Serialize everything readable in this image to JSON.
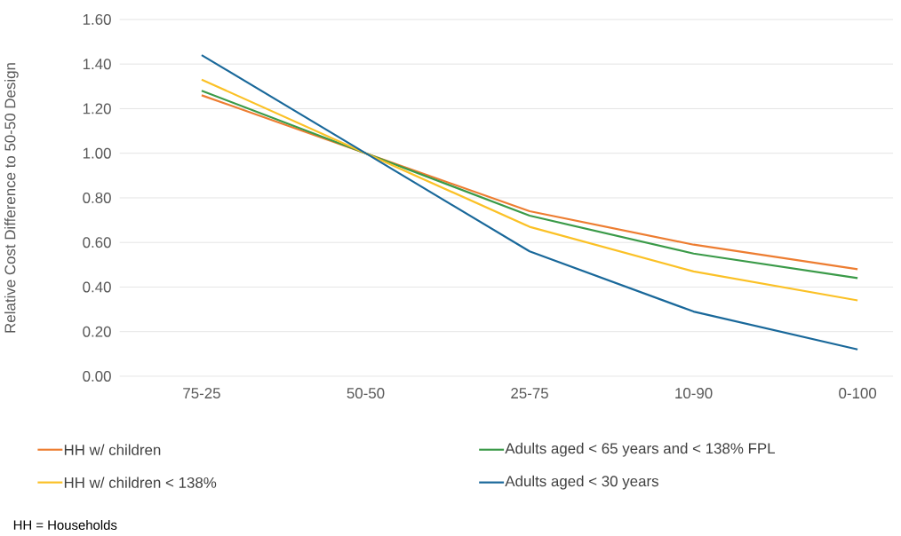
{
  "chart_data": {
    "type": "line",
    "ylabel": "Relative Cost Difference to 50-50 Design",
    "categories": [
      "75-25",
      "50-50",
      "25-75",
      "10-90",
      "0-100"
    ],
    "series": [
      {
        "name": "HH w/ children",
        "color": "#ed7d31",
        "values": [
          1.26,
          1.0,
          0.74,
          0.59,
          0.48
        ]
      },
      {
        "name": "Adults aged < 65 years and < 138% FPL",
        "color": "#3a9a48",
        "values": [
          1.28,
          1.0,
          0.72,
          0.55,
          0.44
        ]
      },
      {
        "name": "HH w/ children < 138%",
        "color": "#fbc126",
        "values": [
          1.33,
          1.0,
          0.67,
          0.47,
          0.34
        ]
      },
      {
        "name": "Adults aged < 30 years",
        "color": "#19689a",
        "values": [
          1.44,
          1.0,
          0.56,
          0.29,
          0.12
        ]
      }
    ],
    "ylim": [
      0,
      1.6
    ],
    "yticks": [
      {
        "value": 0,
        "label": "0.00"
      },
      {
        "value": 0.2,
        "label": "0.20"
      },
      {
        "value": 0.4,
        "label": "0.40"
      },
      {
        "value": 0.6,
        "label": "0.60"
      },
      {
        "value": 0.8,
        "label": "0.80"
      },
      {
        "value": 1.0,
        "label": "1.00"
      },
      {
        "value": 1.2,
        "label": "1.20"
      },
      {
        "value": 1.4,
        "label": "1.40"
      },
      {
        "value": 1.6,
        "label": "1.60"
      }
    ],
    "grid": "y",
    "legend": "bottom",
    "marker": "none",
    "line_style": "solid",
    "annotations": [
      "HH = Households"
    ]
  }
}
